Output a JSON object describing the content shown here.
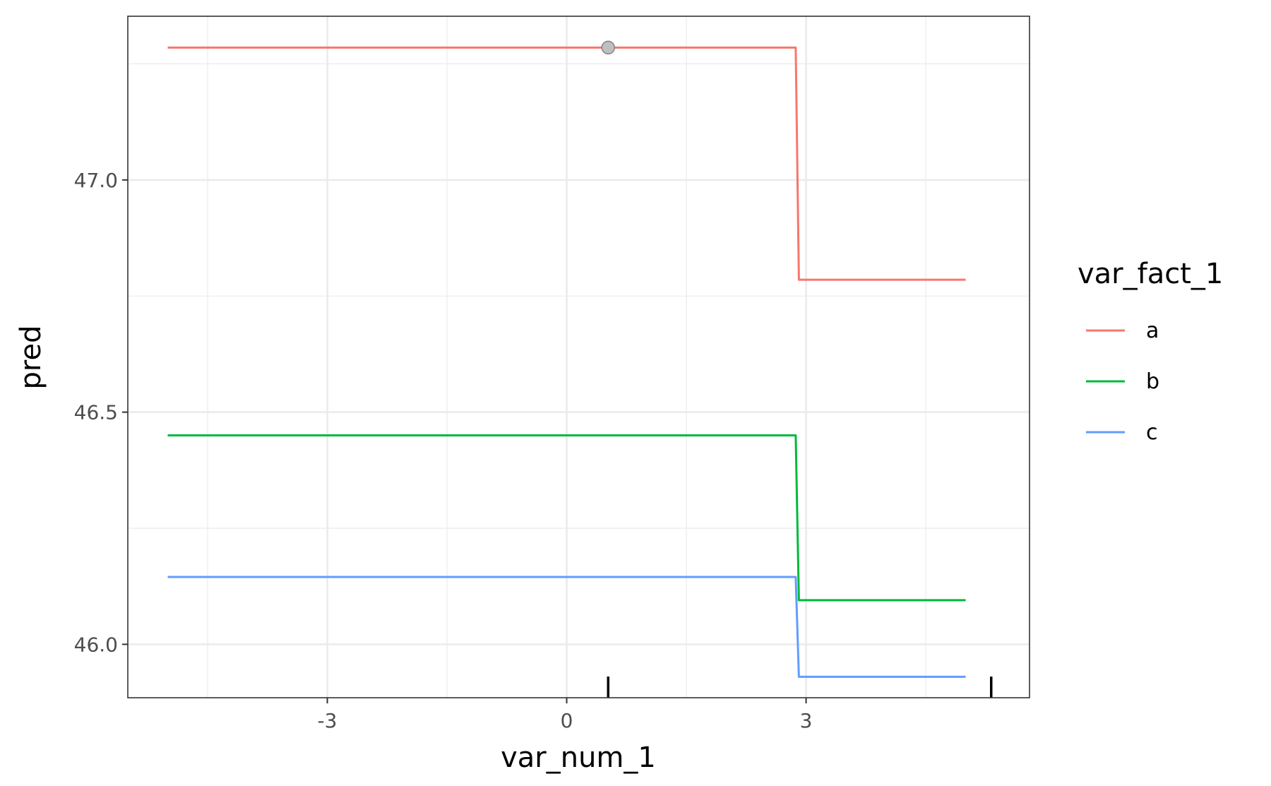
{
  "chart_data": {
    "type": "line",
    "title": "",
    "xlabel": "var_num_1",
    "ylabel": "pred",
    "xlim": [
      -5.5,
      5.8
    ],
    "ylim": [
      45.885,
      47.3525
    ],
    "x_ticks": [
      -3,
      0,
      3
    ],
    "x_tick_labels": [
      "-3",
      "0",
      "3"
    ],
    "y_ticks": [
      46.0,
      46.5,
      47.0
    ],
    "y_tick_labels": [
      "46.0",
      "46.5",
      "47.0"
    ],
    "x_minor_ticks": [
      -4.5,
      -1.5,
      1.5,
      4.5
    ],
    "y_minor_ticks": [
      46.25,
      46.75,
      47.25
    ],
    "grid": true,
    "legend": {
      "title": "var_fact_1",
      "position": "right"
    },
    "series": [
      {
        "name": "a",
        "color": "#F8766D",
        "x": [
          -5,
          2.87,
          2.91,
          5
        ],
        "y": [
          47.285,
          47.285,
          46.785,
          46.785
        ]
      },
      {
        "name": "b",
        "color": "#00BA38",
        "x": [
          -5,
          2.87,
          2.91,
          5
        ],
        "y": [
          46.45,
          46.45,
          46.095,
          46.095
        ]
      },
      {
        "name": "c",
        "color": "#619CFF",
        "x": [
          -5,
          2.87,
          2.91,
          5
        ],
        "y": [
          46.145,
          46.145,
          45.93,
          45.93
        ]
      }
    ],
    "highlight_point": {
      "x": 0.52,
      "y": 47.285,
      "color": "#bfbfbf"
    },
    "rug_x": [
      0.52,
      5.32
    ]
  }
}
